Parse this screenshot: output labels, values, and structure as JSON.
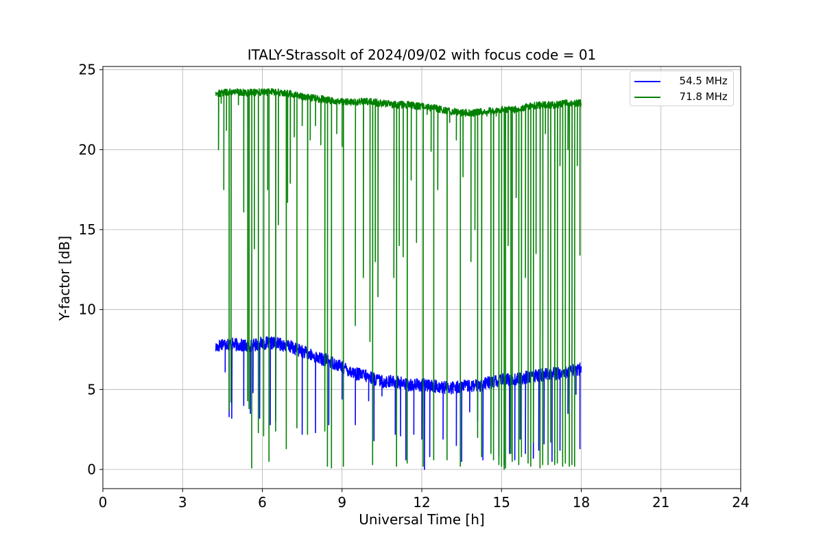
{
  "chart_data": {
    "type": "line",
    "title": "ITALY-Strassolt of 2024/09/02 with focus code = 01",
    "xlabel": "Universal Time [h]",
    "ylabel": "Y-factor [dB]",
    "xlim": [
      0,
      24
    ],
    "ylim": [
      -1.2,
      25.2
    ],
    "xticks": [
      0,
      3,
      6,
      9,
      12,
      15,
      18,
      21,
      24
    ],
    "yticks": [
      0,
      5,
      10,
      15,
      20,
      25
    ],
    "grid": true,
    "legend_position": "top-right",
    "data_time_range": [
      4.25,
      18.0
    ],
    "series": [
      {
        "name": "  54.5 MHz",
        "color": "#0000ff",
        "baseline": {
          "x": [
            4.25,
            4.5,
            5.0,
            5.5,
            6.0,
            6.5,
            7.0,
            7.5,
            8.0,
            8.5,
            9.0,
            9.5,
            10.0,
            10.5,
            11.0,
            11.5,
            12.0,
            12.5,
            13.0,
            13.5,
            14.0,
            14.5,
            15.0,
            15.5,
            16.0,
            16.5,
            17.0,
            17.5,
            18.0
          ],
          "y": [
            7.6,
            7.9,
            7.8,
            7.7,
            7.9,
            7.9,
            7.7,
            7.4,
            7.0,
            6.8,
            6.4,
            6.0,
            5.8,
            5.5,
            5.5,
            5.3,
            5.3,
            5.2,
            5.1,
            5.2,
            5.2,
            5.4,
            5.6,
            5.6,
            5.8,
            5.9,
            6.0,
            6.1,
            6.3
          ]
        },
        "noise_db": 0.8,
        "dropouts": [
          {
            "x": 4.6,
            "y": 6.1
          },
          {
            "x": 4.75,
            "y": 3.3
          },
          {
            "x": 4.85,
            "y": 3.2
          },
          {
            "x": 5.3,
            "y": 4.0
          },
          {
            "x": 5.55,
            "y": 3.5
          },
          {
            "x": 5.65,
            "y": 4.8
          },
          {
            "x": 5.9,
            "y": 3.2
          },
          {
            "x": 6.3,
            "y": 2.8
          },
          {
            "x": 6.5,
            "y": 3.0
          },
          {
            "x": 7.5,
            "y": 2.2
          },
          {
            "x": 8.0,
            "y": 2.3
          },
          {
            "x": 8.5,
            "y": 2.8
          },
          {
            "x": 9.0,
            "y": 4.4
          },
          {
            "x": 9.5,
            "y": 2.8
          },
          {
            "x": 10.0,
            "y": 4.3
          },
          {
            "x": 10.2,
            "y": 1.8
          },
          {
            "x": 10.5,
            "y": 4.6
          },
          {
            "x": 11.0,
            "y": 2.2
          },
          {
            "x": 11.2,
            "y": 2.1
          },
          {
            "x": 11.4,
            "y": 0.6
          },
          {
            "x": 11.7,
            "y": 2.2
          },
          {
            "x": 12.0,
            "y": 1.9
          },
          {
            "x": 12.1,
            "y": 0.0
          },
          {
            "x": 12.3,
            "y": 0.8
          },
          {
            "x": 12.8,
            "y": 1.9
          },
          {
            "x": 13.3,
            "y": 1.5
          },
          {
            "x": 13.5,
            "y": 0.5
          },
          {
            "x": 13.8,
            "y": 3.6
          },
          {
            "x": 14.1,
            "y": 3.0
          },
          {
            "x": 14.3,
            "y": 0.6
          },
          {
            "x": 14.6,
            "y": 1.3
          },
          {
            "x": 14.9,
            "y": 0.8
          },
          {
            "x": 15.1,
            "y": 0.3
          },
          {
            "x": 15.3,
            "y": 1.0
          },
          {
            "x": 15.5,
            "y": 0.6
          },
          {
            "x": 15.7,
            "y": 1.9
          },
          {
            "x": 15.9,
            "y": 1.0
          },
          {
            "x": 16.2,
            "y": 0.7
          },
          {
            "x": 16.4,
            "y": 1.2
          },
          {
            "x": 16.6,
            "y": 1.6
          },
          {
            "x": 16.9,
            "y": 0.5
          },
          {
            "x": 17.2,
            "y": 1.2
          },
          {
            "x": 17.5,
            "y": 3.5
          },
          {
            "x": 17.8,
            "y": 4.7
          },
          {
            "x": 17.95,
            "y": 1.3
          }
        ]
      },
      {
        "name": "  71.8 MHz",
        "color": "#008000",
        "baseline": {
          "x": [
            4.25,
            4.5,
            5.0,
            5.5,
            6.0,
            6.5,
            7.0,
            7.5,
            8.0,
            8.5,
            9.0,
            9.5,
            10.0,
            10.5,
            11.0,
            11.5,
            12.0,
            12.5,
            13.0,
            13.5,
            14.0,
            14.5,
            15.0,
            15.5,
            16.0,
            16.5,
            17.0,
            17.5,
            18.0
          ],
          "y": [
            23.5,
            23.55,
            23.6,
            23.55,
            23.6,
            23.6,
            23.5,
            23.3,
            23.2,
            23.1,
            23.0,
            23.0,
            23.0,
            22.9,
            22.8,
            22.8,
            22.7,
            22.6,
            22.4,
            22.3,
            22.3,
            22.4,
            22.5,
            22.5,
            22.7,
            22.8,
            22.8,
            22.9,
            22.9
          ]
        },
        "noise_db": 0.45,
        "dropouts": [
          {
            "x": 4.35,
            "y": 20.0
          },
          {
            "x": 4.45,
            "y": 22.9
          },
          {
            "x": 4.55,
            "y": 17.5
          },
          {
            "x": 4.65,
            "y": 21.2
          },
          {
            "x": 4.75,
            "y": 3.7
          },
          {
            "x": 4.82,
            "y": 4.2
          },
          {
            "x": 5.1,
            "y": 22.8
          },
          {
            "x": 5.3,
            "y": 16.1
          },
          {
            "x": 5.45,
            "y": 4.3
          },
          {
            "x": 5.5,
            "y": 3.8
          },
          {
            "x": 5.6,
            "y": 0.1
          },
          {
            "x": 5.7,
            "y": 13.8
          },
          {
            "x": 5.85,
            "y": 2.3
          },
          {
            "x": 6.05,
            "y": 2.1
          },
          {
            "x": 6.2,
            "y": 17.5
          },
          {
            "x": 6.25,
            "y": 0.5
          },
          {
            "x": 6.5,
            "y": 2.4
          },
          {
            "x": 6.6,
            "y": 15.3
          },
          {
            "x": 6.9,
            "y": 1.3
          },
          {
            "x": 6.95,
            "y": 16.7
          },
          {
            "x": 7.05,
            "y": 17.9
          },
          {
            "x": 7.2,
            "y": 20.8
          },
          {
            "x": 7.3,
            "y": 2.6
          },
          {
            "x": 7.5,
            "y": 21.5
          },
          {
            "x": 7.7,
            "y": 2.2
          },
          {
            "x": 7.8,
            "y": 20.6
          },
          {
            "x": 8.0,
            "y": 21.5
          },
          {
            "x": 8.2,
            "y": 20.3
          },
          {
            "x": 8.35,
            "y": 2.4
          },
          {
            "x": 8.45,
            "y": 0.2
          },
          {
            "x": 8.6,
            "y": 0.1
          },
          {
            "x": 8.8,
            "y": 21.0
          },
          {
            "x": 9.0,
            "y": 20.2
          },
          {
            "x": 9.05,
            "y": 0.2
          },
          {
            "x": 9.5,
            "y": 9.0
          },
          {
            "x": 9.8,
            "y": 12.0
          },
          {
            "x": 10.05,
            "y": 8.0
          },
          {
            "x": 10.15,
            "y": 0.3
          },
          {
            "x": 10.25,
            "y": 13.0
          },
          {
            "x": 10.35,
            "y": 10.8
          },
          {
            "x": 10.95,
            "y": 12.0
          },
          {
            "x": 11.05,
            "y": 0.2
          },
          {
            "x": 11.15,
            "y": 14.0
          },
          {
            "x": 11.3,
            "y": 13.3
          },
          {
            "x": 11.45,
            "y": 0.4
          },
          {
            "x": 11.6,
            "y": 18.1
          },
          {
            "x": 11.8,
            "y": 14.2
          },
          {
            "x": 12.05,
            "y": 0.2
          },
          {
            "x": 12.2,
            "y": 22.2
          },
          {
            "x": 12.35,
            "y": 19.9
          },
          {
            "x": 12.45,
            "y": 0.6
          },
          {
            "x": 12.6,
            "y": 17.5
          },
          {
            "x": 12.95,
            "y": 0.6
          },
          {
            "x": 13.05,
            "y": 21.7
          },
          {
            "x": 13.3,
            "y": 20.6
          },
          {
            "x": 13.45,
            "y": 0.2
          },
          {
            "x": 13.55,
            "y": 18.3
          },
          {
            "x": 13.85,
            "y": 13.0
          },
          {
            "x": 14.0,
            "y": 15.0
          },
          {
            "x": 14.1,
            "y": 2.0
          },
          {
            "x": 14.25,
            "y": 0.8
          },
          {
            "x": 14.45,
            "y": 22.1
          },
          {
            "x": 14.6,
            "y": 1.0
          },
          {
            "x": 14.7,
            "y": 0.6
          },
          {
            "x": 14.8,
            "y": 22.1
          },
          {
            "x": 14.9,
            "y": 0.3
          },
          {
            "x": 15.0,
            "y": 0.2
          },
          {
            "x": 15.1,
            "y": 0.0
          },
          {
            "x": 15.15,
            "y": 0.1
          },
          {
            "x": 15.25,
            "y": 14.0
          },
          {
            "x": 15.35,
            "y": 1.0
          },
          {
            "x": 15.4,
            "y": 0.5
          },
          {
            "x": 15.55,
            "y": 17.0
          },
          {
            "x": 15.65,
            "y": 0.3
          },
          {
            "x": 15.75,
            "y": 0.8
          },
          {
            "x": 15.9,
            "y": 12.0
          },
          {
            "x": 16.0,
            "y": 0.4
          },
          {
            "x": 16.1,
            "y": 0.2
          },
          {
            "x": 16.2,
            "y": 1.7
          },
          {
            "x": 16.3,
            "y": 13.5
          },
          {
            "x": 16.45,
            "y": 0.1
          },
          {
            "x": 16.55,
            "y": 0.3
          },
          {
            "x": 16.65,
            "y": 21.0
          },
          {
            "x": 16.75,
            "y": 0.3
          },
          {
            "x": 16.85,
            "y": 1.7
          },
          {
            "x": 17.0,
            "y": 0.3
          },
          {
            "x": 17.1,
            "y": 0.4
          },
          {
            "x": 17.2,
            "y": 19.0
          },
          {
            "x": 17.3,
            "y": 0.2
          },
          {
            "x": 17.4,
            "y": 0.4
          },
          {
            "x": 17.5,
            "y": 20.0
          },
          {
            "x": 17.55,
            "y": 0.2
          },
          {
            "x": 17.65,
            "y": 0.3
          },
          {
            "x": 17.75,
            "y": 0.2
          },
          {
            "x": 17.85,
            "y": 19.0
          },
          {
            "x": 17.95,
            "y": 13.4
          }
        ]
      }
    ]
  }
}
